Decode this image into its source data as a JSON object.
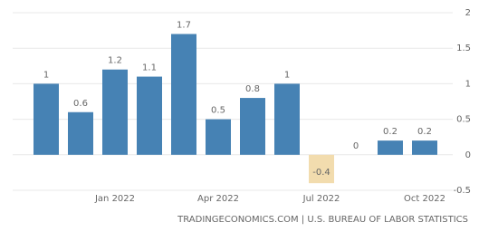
{
  "chart_data": {
    "type": "bar",
    "categories": [
      null,
      null,
      "Jan 2022",
      null,
      null,
      "Apr 2022",
      null,
      null,
      "Jul 2022",
      null,
      null,
      "Oct 2022"
    ],
    "values": [
      1,
      0.6,
      1.2,
      1.1,
      1.7,
      0.5,
      0.8,
      1,
      -0.4,
      0,
      0.2,
      0.2
    ],
    "color": "#4682b4",
    "negative_color": "#f2dcae",
    "ylim": [
      -0.5,
      2
    ],
    "yticks": [
      -0.5,
      0,
      0.5,
      1,
      1.5,
      2
    ],
    "grid": true,
    "source": "TRADINGECONOMICS.COM | U.S. BUREAU OF LABOR STATISTICS"
  }
}
